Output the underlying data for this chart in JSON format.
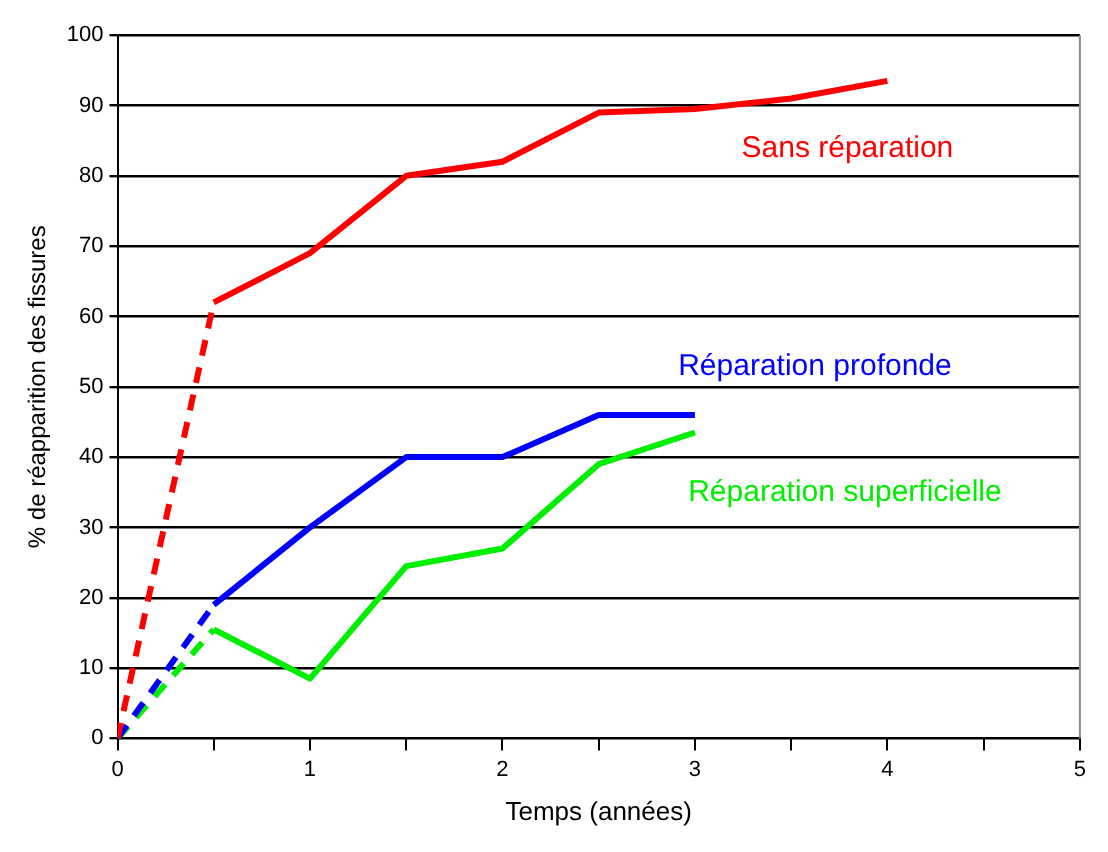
{
  "chart_data": {
    "type": "line",
    "xlabel": "Temps (années)",
    "ylabel": "% de réapparition des fissures",
    "xlim": [
      0,
      5
    ],
    "xticks": [
      0,
      {
        "value": 0.5,
        "label": null
      },
      1,
      {
        "value": 1.5,
        "label": null
      },
      2,
      {
        "value": 2.5,
        "label": null
      },
      3,
      {
        "value": 3.5,
        "label": null
      },
      4,
      {
        "value": 4.5,
        "label": null
      },
      5
    ],
    "ylim": [
      0,
      100
    ],
    "yticks": [
      0,
      10,
      20,
      30,
      40,
      50,
      60,
      70,
      80,
      90,
      100
    ],
    "grid": "y",
    "legend": false,
    "marker": "none",
    "series": [
      {
        "color": "#ff0000",
        "x": [
          0,
          0.5
        ],
        "values": [
          0,
          62
        ],
        "line_style": "dashed"
      },
      {
        "name": "Sans réparation",
        "color": "#ff0000",
        "x": [
          0.5,
          1,
          1.5,
          2,
          2.5,
          3,
          3.5,
          4
        ],
        "values": [
          62,
          69,
          80,
          82,
          89,
          89.5,
          91,
          93.5
        ],
        "line_style": "solid"
      },
      {
        "color": "#0000ff",
        "x": [
          0,
          0.5
        ],
        "values": [
          0,
          19
        ],
        "line_style": "dashed"
      },
      {
        "name": "Réparation profonde",
        "color": "#0000ff",
        "x": [
          0.5,
          1,
          1.5,
          2,
          2.5,
          3
        ],
        "values": [
          19,
          30,
          40,
          40,
          46,
          46
        ],
        "line_style": "solid"
      },
      {
        "color": "#00ee00",
        "x": [
          0,
          0.5
        ],
        "values": [
          0,
          15.5
        ],
        "line_style": "dashed"
      },
      {
        "name": "Réparation superficielle",
        "color": "#00ee00",
        "x": [
          0.5,
          1,
          1.5,
          2,
          2.5,
          3
        ],
        "values": [
          15.5,
          8.5,
          24.5,
          27,
          39,
          43.5
        ],
        "line_style": "solid"
      }
    ]
  }
}
